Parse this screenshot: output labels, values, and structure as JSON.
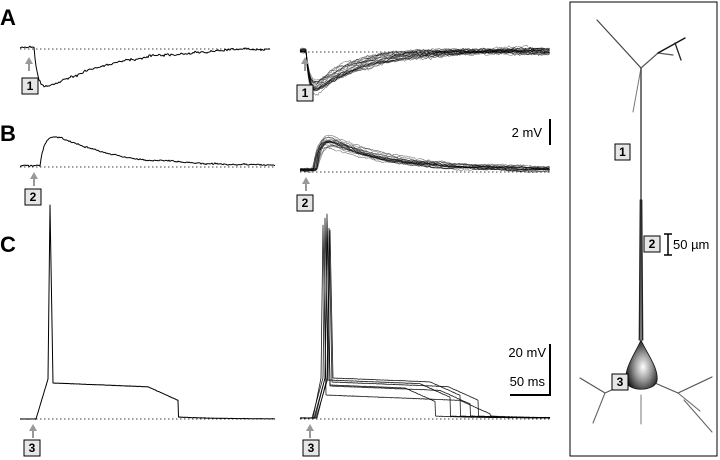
{
  "panels": {
    "a": {
      "letter": "A"
    },
    "b": {
      "letter": "B"
    },
    "c": {
      "letter": "C"
    }
  },
  "markers": {
    "a_left": "1",
    "a_right": "1",
    "b_left": "2",
    "b_right": "2",
    "c_left": "3",
    "c_right": "3"
  },
  "scalebars": {
    "psp_amplitude": "2 mV",
    "spike_amplitude": "20 mV",
    "time": "50 ms"
  },
  "neuron": {
    "site1": "1",
    "site2": "2",
    "site3": "3",
    "length_scale": "50 µm"
  },
  "colors": {
    "trace": "#000000",
    "baseline": "#000000",
    "arrow": "#999999",
    "marker_fill": "#e6e6e6",
    "neuron_line": "#555555"
  },
  "icons": {
    "stimulus": "gray-up-arrow",
    "morphology": "pyramidal-neuron"
  }
}
